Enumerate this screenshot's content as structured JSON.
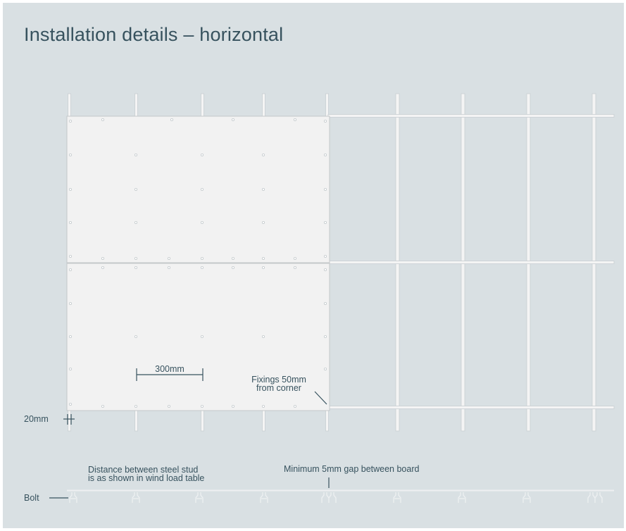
{
  "title": "Installation details – horizontal",
  "annotations": {
    "dim_300": "300mm",
    "fixings_line1": "Fixings 50mm",
    "fixings_line2": "from corner",
    "edge_20": "20mm",
    "stud_note_line1": "Distance between steel stud",
    "stud_note_line2": "is as shown in wind load table",
    "gap_note": "Minimum 5mm gap between board",
    "bolt": "Bolt"
  },
  "colors": {
    "background": "#d9e0e3",
    "board": "#f2f2f2",
    "stud": "#f7f7f7",
    "text": "#37525e"
  }
}
